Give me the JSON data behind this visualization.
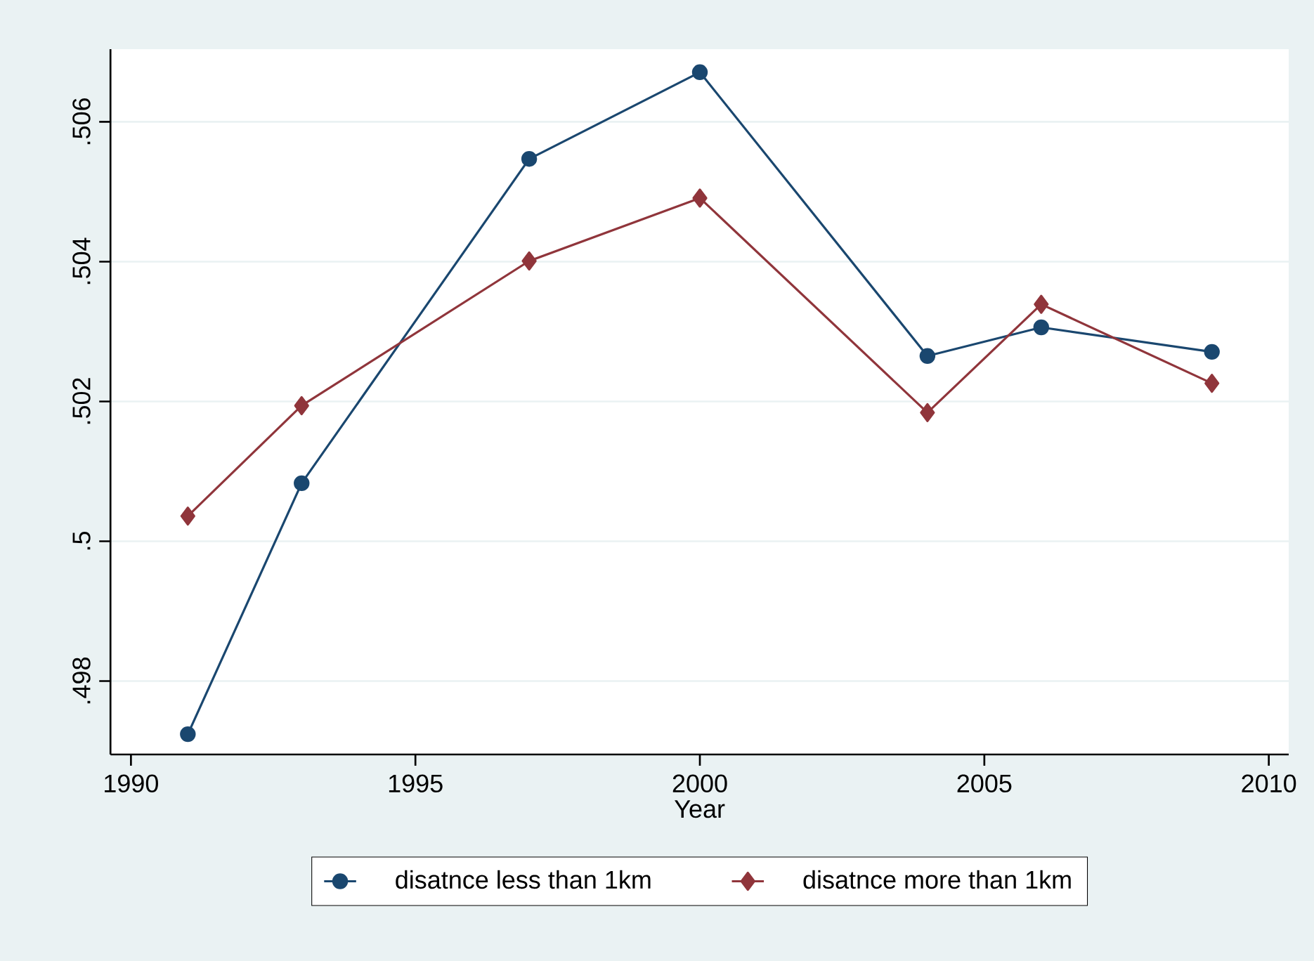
{
  "chart_data": {
    "type": "line",
    "xlabel": "Year",
    "x": [
      1991,
      1993,
      1997,
      2000,
      2004,
      2006,
      2009
    ],
    "series": [
      {
        "name": "disatnce less than 1km",
        "color": "#1a476f",
        "marker": "circle",
        "values": [
          0.49724,
          0.50083,
          0.50547,
          0.50671,
          0.50265,
          0.50306,
          0.50271
        ]
      },
      {
        "name": "disatnce more than 1km",
        "color": "#90353b",
        "marker": "diamond",
        "values": [
          0.50036,
          0.50194,
          0.50401,
          0.50491,
          0.50184,
          0.50339,
          0.50226
        ]
      }
    ],
    "xlim": [
      1989.64,
      2010.35
    ],
    "ylim": [
      0.49695,
      0.50704
    ],
    "xticks": [
      1990,
      1995,
      2000,
      2005,
      2010
    ],
    "yticks": [
      {
        "value": 0.498,
        "label": ".498"
      },
      {
        "value": 0.5,
        "label": ".5"
      },
      {
        "value": 0.502,
        "label": ".502"
      },
      {
        "value": 0.504,
        "label": ".504"
      },
      {
        "value": 0.506,
        "label": ".506"
      }
    ],
    "grid": "y",
    "legend": "bottom",
    "line_style": "solid"
  }
}
